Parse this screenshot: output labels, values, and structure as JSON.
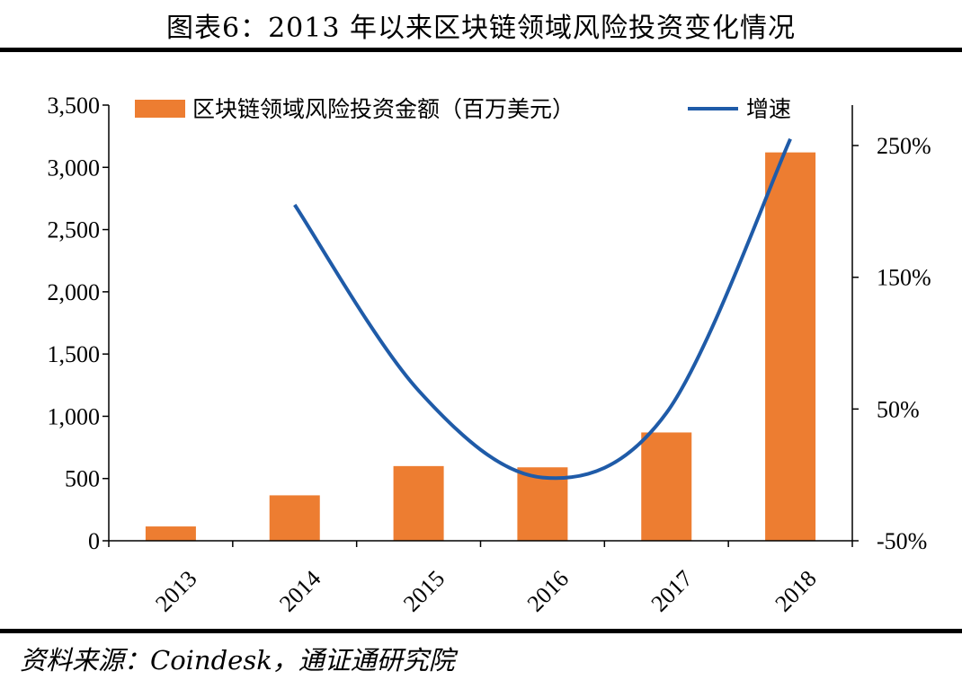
{
  "title": "图表6：2013 年以来区块链领域风险投资变化情况",
  "source": "资料来源：Coindesk，通证通研究院",
  "colors": {
    "bar": "#ED7D31",
    "line": "#1F5BA8"
  },
  "chart_data": {
    "type": "bar",
    "categories": [
      "2013",
      "2014",
      "2015",
      "2016",
      "2017",
      "2018"
    ],
    "series": [
      {
        "name": "区块链领域风险投资金额（百万美元）",
        "type": "bar",
        "axis": "left",
        "values": [
          115,
          365,
          600,
          590,
          870,
          3120
        ]
      },
      {
        "name": "增速",
        "type": "line",
        "axis": "right",
        "smooth": true,
        "values": [
          null,
          2.05,
          0.64,
          -0.02,
          0.47,
          2.55
        ]
      }
    ],
    "y_left": {
      "ylim": [
        0,
        3500
      ],
      "ticks": [
        0,
        500,
        1000,
        1500,
        2000,
        2500,
        3000,
        3500
      ],
      "tick_labels": [
        "0",
        "500",
        "1,000",
        "1,500",
        "2,000",
        "2,500",
        "3,000",
        "3,500"
      ]
    },
    "y_right": {
      "ylim": [
        -0.5,
        2.8
      ],
      "ticks": [
        -0.5,
        0.5,
        1.5,
        2.5
      ],
      "tick_labels": [
        "-50%",
        "50%",
        "150%",
        "250%"
      ]
    },
    "legend_position": "top",
    "grid": false
  }
}
